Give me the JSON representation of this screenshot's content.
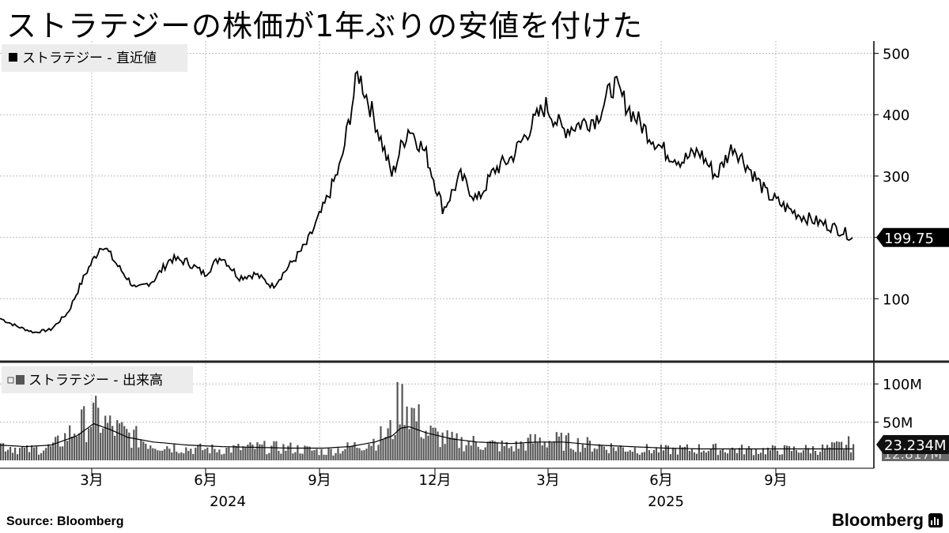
{
  "header": {
    "title": "ストラテジーの株価が1年ぶりの安値を付けた"
  },
  "footer": {
    "source_label": "Source:",
    "source_name": "Bloomberg",
    "brand": "Bloomberg"
  },
  "chart_data": [
    {
      "type": "line",
      "legend": "ストラテジー - 直近値",
      "y_ticks": [
        "500",
        "400",
        "300",
        "200",
        "100"
      ],
      "ylim": [
        0,
        520
      ],
      "last_value_label": "199.75",
      "x_tick_labels": [
        "3月",
        "6月",
        "9月",
        "12月",
        "3月",
        "6月",
        "9月"
      ],
      "year_labels": [
        "2024",
        "2025"
      ],
      "x": [
        0,
        0.02,
        0.04,
        0.06,
        0.08,
        0.1,
        0.12,
        0.14,
        0.16,
        0.18,
        0.2,
        0.22,
        0.24,
        0.26,
        0.28,
        0.3,
        0.32,
        0.34,
        0.36,
        0.38,
        0.4,
        0.42,
        0.44,
        0.46,
        0.47,
        0.48,
        0.5,
        0.52,
        0.54,
        0.56,
        0.58,
        0.6,
        0.62,
        0.64,
        0.66,
        0.68,
        0.7,
        0.72,
        0.74,
        0.76,
        0.78,
        0.8,
        0.82,
        0.84,
        0.86,
        0.88,
        0.9,
        0.92,
        0.94,
        0.96,
        0.98,
        0.995,
        1
      ],
      "values": [
        68,
        55,
        45,
        50,
        78,
        140,
        190,
        150,
        115,
        130,
        165,
        160,
        140,
        170,
        135,
        140,
        120,
        155,
        190,
        250,
        320,
        470,
        390,
        300,
        345,
        380,
        335,
        245,
        300,
        260,
        310,
        330,
        375,
        415,
        375,
        385,
        395,
        450,
        405,
        370,
        340,
        325,
        340,
        300,
        350,
        310,
        270,
        250,
        235,
        225,
        215,
        205,
        199.75
      ]
    },
    {
      "type": "bar",
      "legend": "ストラテジー - 出来高",
      "y_ticks": [
        "100M",
        "50M"
      ],
      "ylim": [
        0,
        125
      ],
      "last_value_label": "23.234M",
      "hidden_value_label": "12.817M",
      "x": [
        0,
        0.03,
        0.06,
        0.09,
        0.11,
        0.13,
        0.15,
        0.18,
        0.22,
        0.26,
        0.3,
        0.34,
        0.38,
        0.41,
        0.44,
        0.46,
        0.47,
        0.48,
        0.5,
        0.53,
        0.56,
        0.6,
        0.63,
        0.66,
        0.7,
        0.74,
        0.78,
        0.82,
        0.86,
        0.9,
        0.94,
        0.97,
        1
      ],
      "values": [
        22,
        14,
        18,
        45,
        60,
        45,
        35,
        22,
        16,
        15,
        18,
        17,
        12,
        18,
        28,
        42,
        100,
        70,
        38,
        26,
        24,
        18,
        28,
        26,
        20,
        16,
        14,
        16,
        15,
        14,
        15,
        16,
        23.234
      ],
      "average": [
        20,
        18,
        20,
        32,
        48,
        40,
        30,
        24,
        20,
        18,
        17,
        16,
        16,
        18,
        24,
        32,
        42,
        44,
        36,
        28,
        24,
        22,
        24,
        24,
        20,
        18,
        16,
        15,
        15,
        15,
        15,
        15,
        15
      ]
    }
  ]
}
